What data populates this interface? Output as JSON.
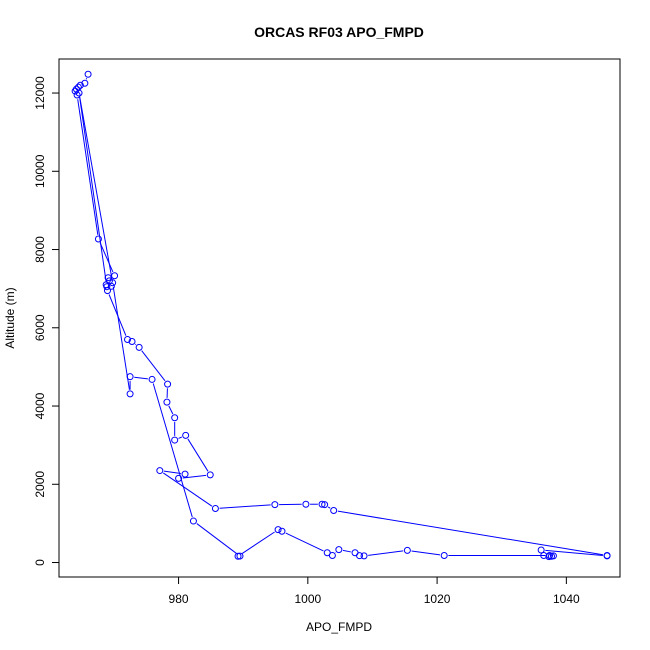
{
  "chart_data": {
    "type": "scatter",
    "title": "ORCAS RF03 APO_FMPD",
    "xlabel": "APO_FMPD",
    "ylabel": "Altitude (m)",
    "xlim": [
      961.5,
      1048.3
    ],
    "ylim": [
      -370,
      12870
    ],
    "xticks": [
      980,
      1000,
      1020,
      1040
    ],
    "yticks": [
      0,
      2000,
      4000,
      6000,
      8000,
      10000,
      12000
    ],
    "grid": false,
    "line_color": "#0000ff",
    "series": [
      {
        "points": [
          [
            966.0,
            12480
          ],
          [
            965.5,
            12250
          ],
          [
            964.8,
            12200
          ],
          [
            964.5,
            12150
          ],
          [
            964.2,
            12100
          ],
          [
            964.0,
            12050
          ],
          [
            964.3,
            11950
          ],
          [
            967.6,
            8270
          ],
          [
            970.1,
            7330
          ],
          [
            969.1,
            7280
          ],
          [
            969.3,
            7200
          ],
          [
            968.8,
            7100
          ],
          [
            969.6,
            7060
          ],
          [
            969.0,
            6950
          ],
          [
            972.1,
            5700
          ],
          [
            972.8,
            5650
          ],
          [
            973.9,
            5500
          ],
          [
            978.3,
            4560
          ],
          [
            978.2,
            4100
          ],
          [
            979.4,
            3700
          ],
          [
            979.4,
            3130
          ],
          [
            981.1,
            3250
          ],
          [
            984.9,
            2240
          ],
          [
            980.0,
            2150
          ],
          [
            981.0,
            2260
          ],
          [
            977.1,
            2350
          ],
          [
            985.7,
            1380
          ],
          [
            994.9,
            1480
          ],
          [
            999.7,
            1490
          ],
          [
            1002.2,
            1490
          ],
          [
            1002.6,
            1480
          ],
          [
            1004.0,
            1330
          ],
          [
            1046.3,
            180
          ],
          [
            1046.3,
            170
          ],
          [
            1036.1,
            320
          ],
          [
            1036.5,
            180
          ],
          [
            1037.3,
            150
          ],
          [
            1037.7,
            160
          ],
          [
            1038.0,
            170
          ],
          [
            1037.4,
            180
          ],
          [
            1021.1,
            180
          ],
          [
            1015.4,
            310
          ],
          [
            1008.7,
            170
          ],
          [
            1008.0,
            175
          ],
          [
            1007.3,
            250
          ],
          [
            1004.8,
            330
          ],
          [
            1003.8,
            180
          ],
          [
            1003.0,
            250
          ],
          [
            996.0,
            800
          ],
          [
            995.4,
            840
          ],
          [
            989.2,
            160
          ],
          [
            989.5,
            165
          ],
          [
            982.3,
            1060
          ],
          [
            975.9,
            4680
          ],
          [
            972.5,
            4750
          ],
          [
            972.5,
            4310
          ],
          [
            969.8,
            7150
          ],
          [
            964.6,
            12000
          ],
          [
            968.9,
            7050
          ]
        ]
      }
    ]
  }
}
